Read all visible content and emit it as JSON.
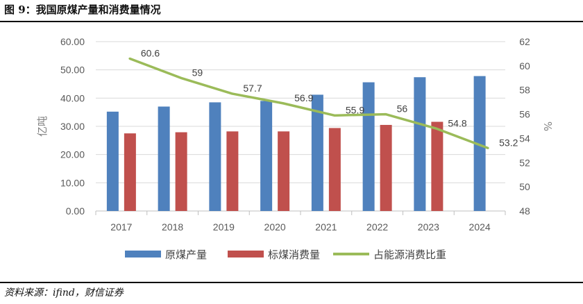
{
  "figure": {
    "title": "图 9：我国原煤产量和消费量情况",
    "source": "资料来源：ifind，财信证券"
  },
  "colors": {
    "series1": "#4f81bd",
    "series2": "#c0504d",
    "series3": "#9bbb59",
    "gridline": "#d9d9d9",
    "axis_text": "#595959"
  },
  "chart_data": {
    "type": "bar",
    "title": "",
    "categories": [
      "2017",
      "2018",
      "2019",
      "2020",
      "2021",
      "2022",
      "2023",
      "2024"
    ],
    "series": [
      {
        "name": "原煤产量",
        "axis": "left",
        "type": "bar",
        "values": [
          35.2,
          37.0,
          38.5,
          39.0,
          41.2,
          45.6,
          47.4,
          47.8
        ]
      },
      {
        "name": "标煤消费量",
        "axis": "left",
        "type": "bar",
        "values": [
          27.5,
          27.9,
          28.2,
          28.2,
          29.4,
          30.5,
          31.6,
          null
        ]
      },
      {
        "name": "占能源消费比重",
        "axis": "right",
        "type": "line",
        "values": [
          60.6,
          59,
          57.7,
          56.9,
          55.9,
          56,
          54.8,
          53.2
        ],
        "labels": [
          "60.6",
          "59",
          "57.7",
          "56.9",
          "55.9",
          "56",
          "54.8",
          "53.2"
        ]
      }
    ],
    "y_left": {
      "label": "亿吨",
      "ylim": [
        0,
        60
      ],
      "ticks": [
        "0.00",
        "10.00",
        "20.00",
        "30.00",
        "40.00",
        "50.00",
        "60.00"
      ]
    },
    "y_right": {
      "label": "%",
      "ylim": [
        48,
        62
      ],
      "ticks": [
        "48",
        "50",
        "52",
        "54",
        "56",
        "58",
        "60",
        "62"
      ]
    },
    "legend": {
      "placement": "bottom",
      "entries": [
        "原煤产量",
        "标煤消费量",
        "占能源消费比重"
      ]
    },
    "grid": true
  }
}
